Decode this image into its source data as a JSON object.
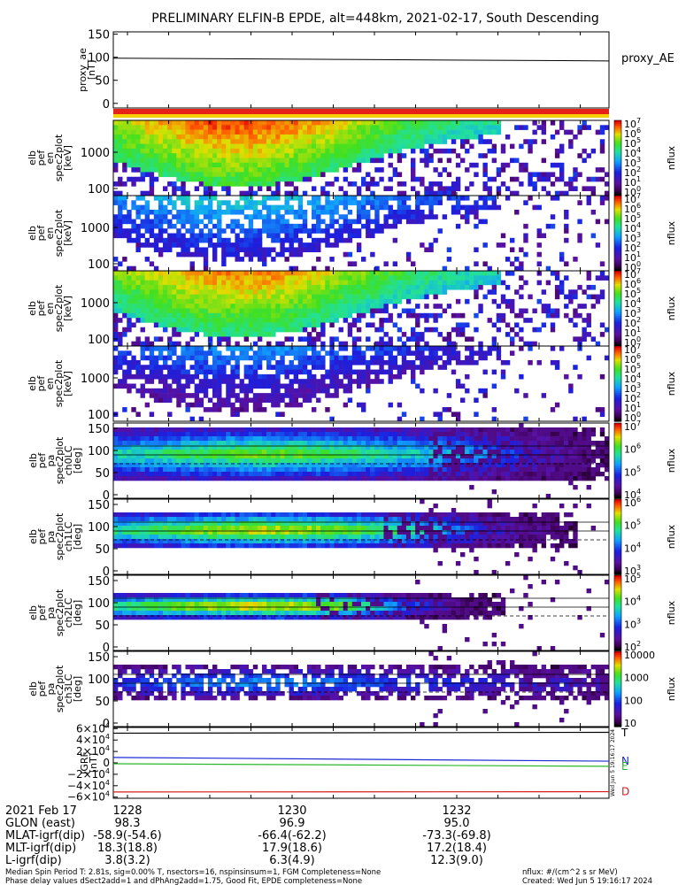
{
  "title": "PRELIMINARY ELFIN-B EPDE, alt=448km, 2021-02-17, South Descending",
  "colors": {
    "ae_line": "#000000",
    "bar_red": "#e8201a",
    "bar_yellow": "#f5d000",
    "igrf_N": "#1a28d8",
    "igrf_E": "#2ab82a",
    "igrf_D": "#d81a1a",
    "igrf_T": "#000000"
  },
  "chart_data": [
    {
      "type": "line",
      "panel": "proxy_ae",
      "ylabel": "proxy_ae\n[nT]",
      "yticks": [
        "150",
        "100",
        "50",
        "0"
      ],
      "ylim": [
        -10,
        155
      ],
      "legend": "proxy_AE",
      "x": [
        0,
        0.5,
        1.0
      ],
      "values": [
        98,
        95,
        92
      ]
    },
    {
      "type": "heatmap",
      "panel": "pef_en_spec2plot_omni",
      "ylabel": "elb\npef\nen\nspec2plot\n[keV]",
      "yticks": [
        "1000",
        "100"
      ],
      "colorbar": {
        "label": "nflux",
        "ticks": [
          "10^7",
          "10^6",
          "10^5",
          "10^4",
          "10^3",
          "10^2",
          "10^1",
          "10^0"
        ]
      }
    },
    {
      "type": "heatmap",
      "panel": "pef_en_spec2plot_anti",
      "ylabel": "elb\npef\nen\nspec2plot\n[keV]",
      "yticks": [
        "1000",
        "100"
      ],
      "colorbar": {
        "label": "nflux",
        "ticks": [
          "10^7",
          "10^6",
          "10^5",
          "10^4",
          "10^3",
          "10^2",
          "10^1",
          "10^0"
        ]
      }
    },
    {
      "type": "heatmap",
      "panel": "pef_en_spec2plot_perp",
      "ylabel": "elb\npef\nen\nspec2plot\n[keV]",
      "yticks": [
        "1000",
        "100"
      ],
      "colorbar": {
        "label": "nflux",
        "ticks": [
          "10^7",
          "10^6",
          "10^5",
          "10^4",
          "10^3",
          "10^2",
          "10^1",
          "10^0"
        ]
      }
    },
    {
      "type": "heatmap",
      "panel": "pef_en_spec2plot_para",
      "ylabel": "elb\npef\nen\nspec2plot\n[keV]",
      "yticks": [
        "1000",
        "100"
      ],
      "colorbar": {
        "label": "nflux",
        "ticks": [
          "10^7",
          "10^6",
          "10^5",
          "10^4",
          "10^3",
          "10^2",
          "10^1",
          "10^0"
        ]
      }
    },
    {
      "type": "heatmap",
      "panel": "pef_pa_spec2plot_ch0LC",
      "ylabel": "elb\npef\npa\nspec2plot\nch0LC\n[deg]",
      "yticks": [
        "150",
        "100",
        "50",
        "0"
      ],
      "colorbar": {
        "label": "nflux",
        "ticks": [
          "10^7",
          "10^6",
          "10^5",
          "10^4"
        ]
      }
    },
    {
      "type": "heatmap",
      "panel": "pef_pa_spec2plot_ch1LC",
      "ylabel": "elb\npef\npa\nspec2plot\nch1LC\n[deg]",
      "yticks": [
        "150",
        "100",
        "50",
        "0"
      ],
      "colorbar": {
        "label": "nflux",
        "ticks": [
          "10^6",
          "10^5",
          "10^4",
          "10^3"
        ]
      }
    },
    {
      "type": "heatmap",
      "panel": "pef_pa_spec2plot_ch2LC",
      "ylabel": "elb\npef\npa\nspec2plot\nch2LC\n[deg]",
      "yticks": [
        "150",
        "100",
        "50",
        "0"
      ],
      "colorbar": {
        "label": "nflux",
        "ticks": [
          "10^5",
          "10^4",
          "10^3",
          "10^2"
        ]
      }
    },
    {
      "type": "heatmap",
      "panel": "pef_pa_spec2plot_ch3LC",
      "ylabel": "elb\npef\npa\nspec2plot\nch3LC\n[deg]",
      "yticks": [
        "150",
        "100",
        "50",
        "0"
      ],
      "colorbar": {
        "label": "nflux",
        "ticks": [
          "10000",
          "1000",
          "100",
          "10"
        ]
      }
    },
    {
      "type": "line",
      "panel": "igrf",
      "ylabel": "IGRF\n[nT]",
      "yticks": [
        "6×10^4",
        "4×10^4",
        "2×10^4",
        "0",
        "−2×10^4",
        "−4×10^4",
        "−6×10^4"
      ],
      "ylim": [
        -62000,
        62000
      ],
      "x": [
        0,
        1
      ],
      "series": [
        {
          "name": "T",
          "values": [
            52000,
            53500
          ]
        },
        {
          "name": "N",
          "values": [
            9500,
            3000
          ]
        },
        {
          "name": "E",
          "values": [
            -1500,
            -6000
          ]
        },
        {
          "name": "D",
          "values": [
            -51000,
            -50500
          ]
        }
      ]
    }
  ],
  "time_axis": {
    "date": "2021 Feb 17",
    "ticks": [
      "1228",
      "1230",
      "1232"
    ],
    "rows": [
      {
        "label": "GLON (east)",
        "values": [
          "98.3",
          "96.9",
          "95.0"
        ]
      },
      {
        "label": "MLAT-igrf(dip)",
        "values": [
          "-58.9(-54.6)",
          "-66.4(-62.2)",
          "-73.3(-69.8)"
        ]
      },
      {
        "label": "MLT-igrf(dip)",
        "values": [
          "18.3(18.8)",
          "17.9(18.6)",
          "17.2(18.4)"
        ]
      },
      {
        "label": "L-igrf(dip)",
        "values": [
          "3.8(3.2)",
          "6.3(4.9)",
          "12.3(9.0)"
        ]
      }
    ]
  },
  "footer": {
    "line1": "Median Spin Period T: 2.81s, sig=0.00% T, nsectors=16, nspinsinsum=1, FGM Completeness=None",
    "line2": "Phase delay values dSect2add=1 and dPhAng2add=1.75, Good Fit, EPDE completeness=None",
    "units": "nflux: #/(cm^2 s sr MeV)",
    "created": "Created: Wed Jun  5 19:16:17 2024"
  },
  "side_stamp": "Wed Jun  5 19:16:17 2024"
}
